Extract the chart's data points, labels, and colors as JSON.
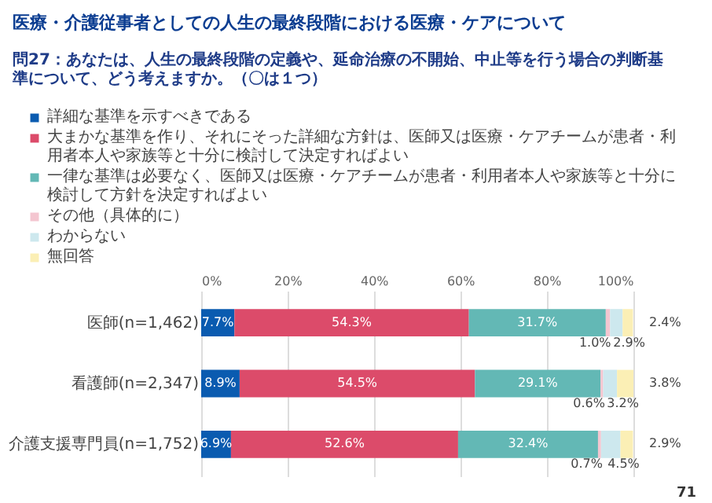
{
  "chart_data": {
    "type": "bar",
    "orientation": "horizontal",
    "stacked": true,
    "title": "医療・介護従事者としての人生の最終段階における医療・ケアについて",
    "subtitle": "問27：あなたは、人生の最終段階の定義や、延命治療の不開始、中止等を行う場合の判断基準について、どう考えますか。（〇は１つ）",
    "categories": [
      "医師(n=1,462)",
      "看護師(n=2,347)",
      "介護支援専門員(n=1,752)"
    ],
    "series": [
      {
        "name": "詳細な基準を示すべきである",
        "color": "#0a5bb0",
        "values": [
          7.7,
          8.9,
          6.9
        ],
        "value_labels": [
          "7.7%",
          "8.9%",
          "6.9%"
        ]
      },
      {
        "name": "大まかな基準を作り、それにそった詳細な方針は、医師又は医療・ケアチームが患者・利用者本人や家族等と十分に検討して決定すればよい",
        "color": "#dc4b6a",
        "values": [
          54.3,
          54.5,
          52.6
        ],
        "value_labels": [
          "54.3%",
          "54.5%",
          "52.6%"
        ]
      },
      {
        "name": "一律な基準は必要なく、医師又は医療・ケアチームが患者・利用者本人や家族等と十分に検討して方針を決定すればよい",
        "color": "#63b8b5",
        "values": [
          31.7,
          29.1,
          32.4
        ],
        "value_labels": [
          "31.7%",
          "29.1%",
          "32.4%"
        ]
      },
      {
        "name": "その他（具体的に）",
        "color": "#f4c6d0",
        "values": [
          1.0,
          0.6,
          0.7
        ],
        "value_labels": [
          "1.0%",
          "0.6%",
          "0.7%"
        ]
      },
      {
        "name": "わからない",
        "color": "#cde8ee",
        "values": [
          2.9,
          3.2,
          4.5
        ],
        "value_labels": [
          "2.9%",
          "3.2%",
          "4.5%"
        ]
      },
      {
        "name": "無回答",
        "color": "#fbefb5",
        "values": [
          2.4,
          3.8,
          2.9
        ],
        "value_labels": [
          "2.4%",
          "3.8%",
          "2.9%"
        ]
      }
    ],
    "xlim": [
      0,
      100.1
    ],
    "xticks": [
      {
        "value": 0,
        "label": "0%"
      },
      {
        "value": 20,
        "label": "20%"
      },
      {
        "value": 40,
        "label": "40%"
      },
      {
        "value": 60,
        "label": "60%"
      },
      {
        "value": 80,
        "label": "80%"
      },
      {
        "value": 100,
        "label": "100%"
      }
    ],
    "grid": "x",
    "legend": "top",
    "annotations": [
      "71"
    ]
  }
}
